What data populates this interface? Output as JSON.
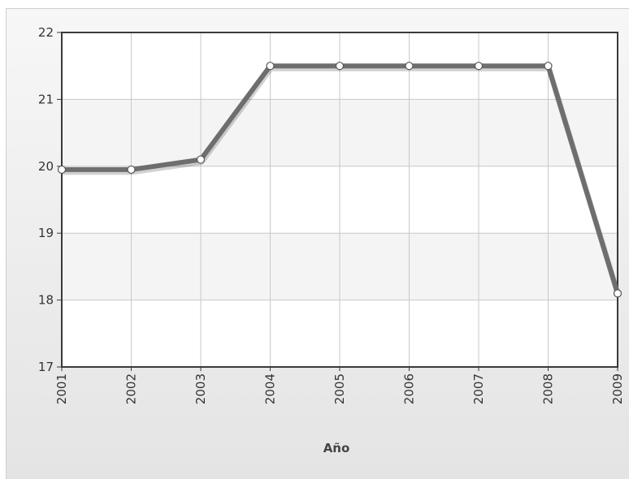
{
  "chart_data": {
    "type": "line",
    "title": "",
    "xlabel": "Año",
    "ylabel": "",
    "categories": [
      "2001",
      "2002",
      "2003",
      "2004",
      "2005",
      "2006",
      "2007",
      "2008",
      "2009"
    ],
    "series": [
      {
        "values": [
          19.95,
          19.95,
          20.1,
          21.5,
          21.5,
          21.5,
          21.5,
          21.5,
          18.1
        ]
      }
    ],
    "ylim": [
      17,
      22
    ],
    "yticks": [
      "17",
      "18",
      "19",
      "20",
      "21",
      "22"
    ],
    "grid": true,
    "legend": "none",
    "colors": {
      "line": "#6e6e6e",
      "marker_fill": "#ffffff",
      "plot_bg_alt": "#f4f4f4"
    }
  }
}
